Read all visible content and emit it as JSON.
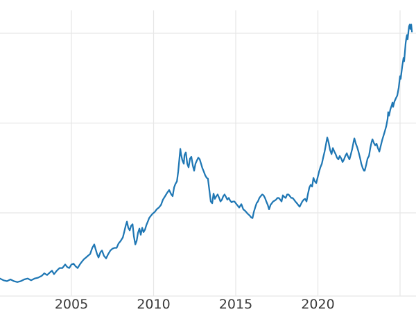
{
  "colors": {
    "series_line": "#1f77b4",
    "gridline": "#e7e7e7",
    "axis_line": "#e7e7e7",
    "tick_label": "#3b3b3b",
    "background": "#ffffff"
  },
  "chart_data": {
    "type": "line",
    "title": "",
    "xlabel": "",
    "ylabel": "",
    "grid": true,
    "legend": "none",
    "x_axis": {
      "tick_labels": [
        "2005",
        "2010",
        "2015",
        "2020"
      ],
      "tick_years": [
        2005,
        2010,
        2015,
        2020
      ],
      "gridline_years": [
        2005,
        2010,
        2015,
        2020,
        2025
      ],
      "visible_range_years": [
        2000.65,
        2026.0
      ]
    },
    "y_axis": {
      "tick_labels_visible": false,
      "units": "normalized (y-axis labels cropped out of view; 0 = bottom axis line, values estimated from unlabeled gridlines)",
      "gridline_values": [
        0.95,
        1.975,
        3.0
      ],
      "axis_line_value": 0,
      "visible_range": [
        0,
        3.26
      ]
    },
    "key_points": [
      {
        "label": "series start (left edge)",
        "year": 2000.65,
        "value": 0.2
      },
      {
        "label": "2006 spike",
        "year": 2006.39,
        "value": 0.59
      },
      {
        "label": "2008 peak",
        "year": 2008.38,
        "value": 0.85
      },
      {
        "label": "2008 trough",
        "year": 2008.89,
        "value": 0.59
      },
      {
        "label": "2011 peak (local max)",
        "year": 2011.63,
        "value": 1.68
      },
      {
        "label": "2013 drop",
        "year": 2013.57,
        "value": 1.06
      },
      {
        "label": "2015-16 low",
        "year": 2016.02,
        "value": 0.89
      },
      {
        "label": "2020 peak",
        "year": 2020.57,
        "value": 1.81
      },
      {
        "label": "2022 low",
        "year": 2022.85,
        "value": 1.43
      },
      {
        "label": "2025 peak / series end",
        "year": 2025.6,
        "value": 3.1
      }
    ],
    "series": [
      {
        "name": "unlabeled-series",
        "color": "#1f77b4",
        "points": [
          [
            2000.65,
            0.2
          ],
          [
            2000.87,
            0.18
          ],
          [
            2001.08,
            0.17
          ],
          [
            2001.29,
            0.19
          ],
          [
            2001.5,
            0.17
          ],
          [
            2001.71,
            0.16
          ],
          [
            2001.92,
            0.17
          ],
          [
            2002.13,
            0.19
          ],
          [
            2002.34,
            0.2
          ],
          [
            2002.55,
            0.18
          ],
          [
            2002.76,
            0.2
          ],
          [
            2002.97,
            0.21
          ],
          [
            2003.19,
            0.23
          ],
          [
            2003.35,
            0.26
          ],
          [
            2003.52,
            0.24
          ],
          [
            2003.69,
            0.27
          ],
          [
            2003.82,
            0.29
          ],
          [
            2003.94,
            0.25
          ],
          [
            2004.11,
            0.29
          ],
          [
            2004.28,
            0.32
          ],
          [
            2004.45,
            0.32
          ],
          [
            2004.62,
            0.36
          ],
          [
            2004.75,
            0.33
          ],
          [
            2004.87,
            0.32
          ],
          [
            2005.0,
            0.36
          ],
          [
            2005.13,
            0.37
          ],
          [
            2005.25,
            0.34
          ],
          [
            2005.38,
            0.32
          ],
          [
            2005.51,
            0.36
          ],
          [
            2005.63,
            0.39
          ],
          [
            2005.76,
            0.42
          ],
          [
            2005.89,
            0.44
          ],
          [
            2006.01,
            0.46
          ],
          [
            2006.14,
            0.48
          ],
          [
            2006.27,
            0.55
          ],
          [
            2006.39,
            0.59
          ],
          [
            2006.48,
            0.53
          ],
          [
            2006.56,
            0.48
          ],
          [
            2006.65,
            0.44
          ],
          [
            2006.77,
            0.5
          ],
          [
            2006.86,
            0.52
          ],
          [
            2006.98,
            0.46
          ],
          [
            2007.11,
            0.43
          ],
          [
            2007.24,
            0.48
          ],
          [
            2007.37,
            0.52
          ],
          [
            2007.49,
            0.54
          ],
          [
            2007.62,
            0.55
          ],
          [
            2007.75,
            0.55
          ],
          [
            2007.87,
            0.6
          ],
          [
            2008.0,
            0.63
          ],
          [
            2008.13,
            0.67
          ],
          [
            2008.21,
            0.73
          ],
          [
            2008.3,
            0.8
          ],
          [
            2008.38,
            0.85
          ],
          [
            2008.46,
            0.78
          ],
          [
            2008.55,
            0.75
          ],
          [
            2008.63,
            0.8
          ],
          [
            2008.72,
            0.82
          ],
          [
            2008.8,
            0.68
          ],
          [
            2008.89,
            0.59
          ],
          [
            2008.97,
            0.63
          ],
          [
            2009.05,
            0.72
          ],
          [
            2009.14,
            0.77
          ],
          [
            2009.22,
            0.7
          ],
          [
            2009.31,
            0.78
          ],
          [
            2009.39,
            0.73
          ],
          [
            2009.48,
            0.76
          ],
          [
            2009.56,
            0.81
          ],
          [
            2009.65,
            0.85
          ],
          [
            2009.73,
            0.89
          ],
          [
            2009.81,
            0.91
          ],
          [
            2009.94,
            0.94
          ],
          [
            2010.07,
            0.96
          ],
          [
            2010.19,
            0.99
          ],
          [
            2010.32,
            1.01
          ],
          [
            2010.45,
            1.04
          ],
          [
            2010.57,
            1.1
          ],
          [
            2010.7,
            1.14
          ],
          [
            2010.83,
            1.18
          ],
          [
            2010.95,
            1.21
          ],
          [
            2011.08,
            1.16
          ],
          [
            2011.16,
            1.14
          ],
          [
            2011.25,
            1.24
          ],
          [
            2011.33,
            1.28
          ],
          [
            2011.42,
            1.31
          ],
          [
            2011.5,
            1.42
          ],
          [
            2011.58,
            1.58
          ],
          [
            2011.63,
            1.68
          ],
          [
            2011.67,
            1.62
          ],
          [
            2011.75,
            1.55
          ],
          [
            2011.84,
            1.51
          ],
          [
            2011.88,
            1.61
          ],
          [
            2011.96,
            1.64
          ],
          [
            2012.05,
            1.51
          ],
          [
            2012.13,
            1.47
          ],
          [
            2012.22,
            1.57
          ],
          [
            2012.3,
            1.59
          ],
          [
            2012.39,
            1.49
          ],
          [
            2012.47,
            1.43
          ],
          [
            2012.55,
            1.51
          ],
          [
            2012.64,
            1.55
          ],
          [
            2012.72,
            1.58
          ],
          [
            2012.81,
            1.56
          ],
          [
            2012.89,
            1.51
          ],
          [
            2012.97,
            1.46
          ],
          [
            2013.06,
            1.42
          ],
          [
            2013.14,
            1.38
          ],
          [
            2013.23,
            1.35
          ],
          [
            2013.31,
            1.34
          ],
          [
            2013.4,
            1.2
          ],
          [
            2013.48,
            1.08
          ],
          [
            2013.57,
            1.06
          ],
          [
            2013.65,
            1.17
          ],
          [
            2013.73,
            1.11
          ],
          [
            2013.82,
            1.14
          ],
          [
            2013.9,
            1.16
          ],
          [
            2013.99,
            1.12
          ],
          [
            2014.07,
            1.08
          ],
          [
            2014.16,
            1.1
          ],
          [
            2014.24,
            1.14
          ],
          [
            2014.32,
            1.16
          ],
          [
            2014.41,
            1.13
          ],
          [
            2014.49,
            1.1
          ],
          [
            2014.58,
            1.12
          ],
          [
            2014.66,
            1.09
          ],
          [
            2014.75,
            1.07
          ],
          [
            2014.83,
            1.08
          ],
          [
            2014.92,
            1.08
          ],
          [
            2015.0,
            1.06
          ],
          [
            2015.13,
            1.03
          ],
          [
            2015.21,
            1.01
          ],
          [
            2015.34,
            1.05
          ],
          [
            2015.46,
            0.99
          ],
          [
            2015.59,
            0.97
          ],
          [
            2015.72,
            0.94
          ],
          [
            2015.85,
            0.92
          ],
          [
            2015.93,
            0.9
          ],
          [
            2016.02,
            0.89
          ],
          [
            2016.1,
            0.96
          ],
          [
            2016.18,
            1.01
          ],
          [
            2016.27,
            1.06
          ],
          [
            2016.35,
            1.08
          ],
          [
            2016.44,
            1.12
          ],
          [
            2016.52,
            1.14
          ],
          [
            2016.61,
            1.16
          ],
          [
            2016.69,
            1.15
          ],
          [
            2016.78,
            1.12
          ],
          [
            2016.86,
            1.08
          ],
          [
            2016.95,
            1.04
          ],
          [
            2017.03,
            0.99
          ],
          [
            2017.12,
            1.04
          ],
          [
            2017.2,
            1.06
          ],
          [
            2017.28,
            1.08
          ],
          [
            2017.37,
            1.09
          ],
          [
            2017.45,
            1.1
          ],
          [
            2017.54,
            1.12
          ],
          [
            2017.62,
            1.12
          ],
          [
            2017.71,
            1.1
          ],
          [
            2017.79,
            1.08
          ],
          [
            2017.87,
            1.15
          ],
          [
            2017.96,
            1.13
          ],
          [
            2018.04,
            1.12
          ],
          [
            2018.13,
            1.16
          ],
          [
            2018.21,
            1.16
          ],
          [
            2018.3,
            1.14
          ],
          [
            2018.38,
            1.12
          ],
          [
            2018.46,
            1.12
          ],
          [
            2018.55,
            1.1
          ],
          [
            2018.63,
            1.08
          ],
          [
            2018.72,
            1.06
          ],
          [
            2018.8,
            1.04
          ],
          [
            2018.89,
            1.02
          ],
          [
            2018.97,
            1.05
          ],
          [
            2019.05,
            1.08
          ],
          [
            2019.14,
            1.1
          ],
          [
            2019.22,
            1.11
          ],
          [
            2019.31,
            1.08
          ],
          [
            2019.39,
            1.16
          ],
          [
            2019.48,
            1.24
          ],
          [
            2019.56,
            1.27
          ],
          [
            2019.65,
            1.25
          ],
          [
            2019.73,
            1.35
          ],
          [
            2019.81,
            1.31
          ],
          [
            2019.9,
            1.29
          ],
          [
            2019.98,
            1.35
          ],
          [
            2020.07,
            1.42
          ],
          [
            2020.15,
            1.47
          ],
          [
            2020.24,
            1.51
          ],
          [
            2020.32,
            1.58
          ],
          [
            2020.41,
            1.65
          ],
          [
            2020.49,
            1.73
          ],
          [
            2020.57,
            1.81
          ],
          [
            2020.66,
            1.75
          ],
          [
            2020.74,
            1.67
          ],
          [
            2020.83,
            1.62
          ],
          [
            2020.91,
            1.69
          ],
          [
            2021.0,
            1.65
          ],
          [
            2021.08,
            1.62
          ],
          [
            2021.16,
            1.58
          ],
          [
            2021.25,
            1.56
          ],
          [
            2021.33,
            1.6
          ],
          [
            2021.42,
            1.57
          ],
          [
            2021.5,
            1.53
          ],
          [
            2021.59,
            1.56
          ],
          [
            2021.67,
            1.6
          ],
          [
            2021.76,
            1.63
          ],
          [
            2021.84,
            1.59
          ],
          [
            2021.92,
            1.56
          ],
          [
            2022.01,
            1.62
          ],
          [
            2022.09,
            1.68
          ],
          [
            2022.18,
            1.77
          ],
          [
            2022.22,
            1.8
          ],
          [
            2022.31,
            1.74
          ],
          [
            2022.39,
            1.7
          ],
          [
            2022.47,
            1.65
          ],
          [
            2022.56,
            1.58
          ],
          [
            2022.64,
            1.51
          ],
          [
            2022.73,
            1.46
          ],
          [
            2022.81,
            1.43
          ],
          [
            2022.85,
            1.43
          ],
          [
            2022.94,
            1.5
          ],
          [
            2023.02,
            1.57
          ],
          [
            2023.11,
            1.6
          ],
          [
            2023.19,
            1.69
          ],
          [
            2023.27,
            1.76
          ],
          [
            2023.32,
            1.79
          ],
          [
            2023.4,
            1.75
          ],
          [
            2023.49,
            1.72
          ],
          [
            2023.57,
            1.74
          ],
          [
            2023.65,
            1.69
          ],
          [
            2023.74,
            1.65
          ],
          [
            2023.82,
            1.71
          ],
          [
            2023.91,
            1.78
          ],
          [
            2023.99,
            1.83
          ],
          [
            2024.07,
            1.88
          ],
          [
            2024.16,
            1.94
          ],
          [
            2024.24,
            2.02
          ],
          [
            2024.28,
            2.1
          ],
          [
            2024.33,
            2.06
          ],
          [
            2024.41,
            2.13
          ],
          [
            2024.5,
            2.18
          ],
          [
            2024.54,
            2.21
          ],
          [
            2024.58,
            2.16
          ],
          [
            2024.66,
            2.22
          ],
          [
            2024.75,
            2.26
          ],
          [
            2024.83,
            2.29
          ],
          [
            2024.92,
            2.38
          ],
          [
            2025.0,
            2.51
          ],
          [
            2025.04,
            2.48
          ],
          [
            2025.13,
            2.62
          ],
          [
            2025.21,
            2.72
          ],
          [
            2025.25,
            2.68
          ],
          [
            2025.34,
            2.89
          ],
          [
            2025.38,
            2.94
          ],
          [
            2025.42,
            2.98
          ],
          [
            2025.46,
            2.93
          ],
          [
            2025.51,
            3.02
          ],
          [
            2025.55,
            3.08
          ],
          [
            2025.59,
            3.1
          ],
          [
            2025.63,
            3.05
          ],
          [
            2025.68,
            3.1
          ],
          [
            2025.72,
            3.02
          ]
        ]
      }
    ]
  }
}
